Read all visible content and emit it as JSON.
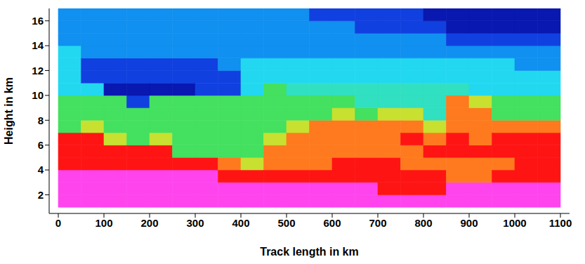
{
  "chart_data": {
    "type": "heatmap",
    "x_label": "Track length in km",
    "y_label": "Height in km",
    "xlim": [
      -20,
      1120
    ],
    "ylim": [
      0.5,
      17
    ],
    "xticks": [
      0,
      100,
      200,
      300,
      400,
      500,
      600,
      700,
      800,
      900,
      1000,
      1100
    ],
    "yticks": [
      2,
      4,
      6,
      8,
      10,
      12,
      14,
      16
    ],
    "x_bins": [
      0,
      50,
      100,
      150,
      200,
      250,
      300,
      350,
      400,
      450,
      500,
      550,
      600,
      650,
      700,
      750,
      800,
      850,
      900,
      950,
      1000,
      1050,
      1100
    ],
    "y_bins": [
      1,
      2,
      3,
      4,
      5,
      6,
      7,
      8,
      9,
      10,
      11,
      12,
      13,
      14,
      15,
      16,
      17
    ],
    "colors": [
      "#ff44ee",
      "#ff1414",
      "#ff7a1e",
      "#c8e030",
      "#44e060",
      "#30e0c0",
      "#22d8f0",
      "#1090f0",
      "#1040e0",
      "#0818b0"
    ],
    "cells": [
      [
        1,
        1,
        1,
        2,
        2,
        2,
        5,
        5,
        5,
        7,
        7,
        7,
        7,
        8,
        8,
        8
      ],
      [
        1,
        1,
        1,
        2,
        2,
        2,
        4,
        5,
        5,
        7,
        9,
        9,
        8,
        8,
        8,
        8
      ],
      [
        1,
        1,
        1,
        2,
        2,
        4,
        5,
        5,
        5,
        10,
        9,
        9,
        8,
        8,
        8,
        8
      ],
      [
        1,
        1,
        1,
        2,
        2,
        5,
        5,
        5,
        9,
        10,
        9,
        9,
        8,
        8,
        8,
        8
      ],
      [
        1,
        1,
        1,
        2,
        2,
        4,
        5,
        5,
        5,
        10,
        9,
        9,
        8,
        8,
        8,
        8
      ],
      [
        1,
        1,
        1,
        2,
        5,
        5,
        5,
        5,
        5,
        10,
        9,
        9,
        8,
        8,
        8,
        8
      ],
      [
        1,
        1,
        1,
        2,
        5,
        5,
        5,
        5,
        5,
        9,
        9,
        9,
        8,
        8,
        8,
        8
      ],
      [
        1,
        1,
        2,
        3,
        5,
        5,
        5,
        5,
        5,
        9,
        9,
        8,
        8,
        8,
        8,
        8
      ],
      [
        1,
        1,
        2,
        4,
        5,
        5,
        5,
        5,
        5,
        7,
        7,
        7,
        8,
        8,
        8,
        8
      ],
      [
        1,
        1,
        2,
        3,
        3,
        4,
        5,
        5,
        5,
        5,
        7,
        7,
        8,
        8,
        8,
        8
      ],
      [
        1,
        1,
        2,
        3,
        3,
        3,
        4,
        5,
        5,
        6,
        7,
        7,
        8,
        8,
        8,
        8
      ],
      [
        1,
        1,
        2,
        3,
        3,
        3,
        3,
        5,
        5,
        6,
        7,
        7,
        8,
        8,
        8,
        9
      ],
      [
        1,
        1,
        2,
        2,
        3,
        3,
        3,
        4,
        5,
        6,
        7,
        7,
        8,
        8,
        8,
        9
      ],
      [
        1,
        1,
        2,
        2,
        3,
        3,
        3,
        5,
        6,
        6,
        7,
        7,
        8,
        8,
        9,
        9
      ],
      [
        1,
        2,
        2,
        2,
        3,
        3,
        3,
        4,
        6,
        6,
        7,
        7,
        8,
        8,
        9,
        9
      ],
      [
        1,
        2,
        2,
        3,
        3,
        2,
        3,
        4,
        6,
        6,
        7,
        7,
        8,
        8,
        9,
        9
      ],
      [
        1,
        2,
        2,
        3,
        2,
        3,
        4,
        6,
        6,
        6,
        7,
        7,
        8,
        8,
        9,
        10
      ],
      [
        1,
        1,
        3,
        3,
        2,
        2,
        3,
        3,
        3,
        6,
        7,
        7,
        8,
        9,
        10,
        10
      ],
      [
        1,
        1,
        3,
        3,
        2,
        3,
        3,
        3,
        4,
        7,
        7,
        7,
        8,
        9,
        10,
        10
      ],
      [
        1,
        1,
        2,
        3,
        2,
        2,
        3,
        5,
        5,
        7,
        7,
        7,
        8,
        9,
        10,
        10
      ],
      [
        1,
        1,
        2,
        2,
        2,
        2,
        3,
        5,
        5,
        7,
        7,
        8,
        8,
        9,
        10,
        10
      ],
      [
        1,
        1,
        2,
        2,
        2,
        2,
        3,
        5,
        5,
        7,
        7,
        8,
        8,
        9,
        10,
        10
      ]
    ]
  }
}
